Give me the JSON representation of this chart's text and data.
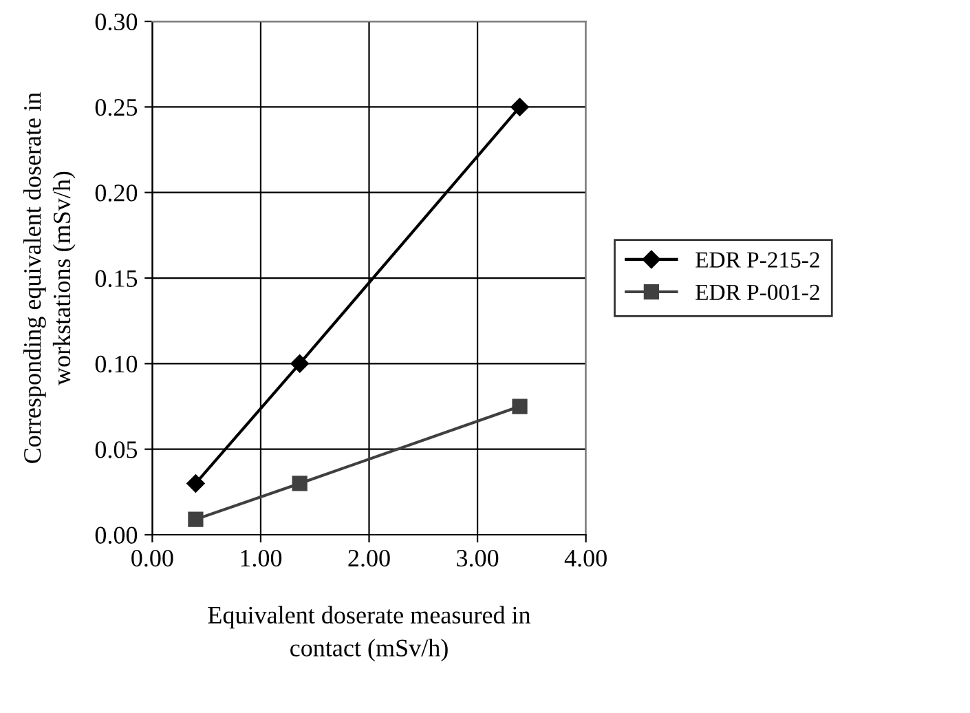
{
  "chart_data": {
    "type": "line",
    "xlabel": "Equivalent doserate measured in\ncontact (mSv/h)",
    "ylabel": "Corresponding equivalent doserate in\nworkstations (mSv/h)",
    "x": [
      0.4,
      1.36,
      3.39
    ],
    "series": [
      {
        "name": "EDR P-215-2",
        "color": "#000000",
        "marker": "diamond",
        "values": [
          0.03,
          0.1,
          0.25
        ]
      },
      {
        "name": "EDR P-001-2",
        "color": "#404040",
        "marker": "square",
        "values": [
          0.009,
          0.03,
          0.075
        ]
      }
    ],
    "xlim": [
      0,
      4
    ],
    "xticks": [
      {
        "value": 0,
        "label": "0.00"
      },
      {
        "value": 1,
        "label": "1.00"
      },
      {
        "value": 2,
        "label": "2.00"
      },
      {
        "value": 3,
        "label": "3.00"
      },
      {
        "value": 4,
        "label": "4.00"
      }
    ],
    "ylim": [
      0,
      0.3
    ],
    "yticks": [
      {
        "value": 0,
        "label": "0.00"
      },
      {
        "value": 0.05,
        "label": "0.05"
      },
      {
        "value": 0.1,
        "label": "0.10"
      },
      {
        "value": 0.15,
        "label": "0.15"
      },
      {
        "value": 0.2,
        "label": "0.20"
      },
      {
        "value": 0.25,
        "label": "0.25"
      },
      {
        "value": 0.3,
        "label": "0.30"
      }
    ],
    "grid": true,
    "legend": "right",
    "line_style": "solid"
  }
}
